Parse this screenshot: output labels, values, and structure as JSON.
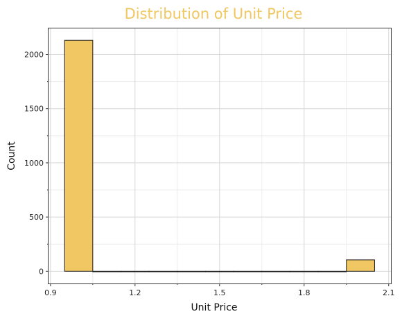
{
  "chart_data": {
    "type": "bar",
    "title": "Distribution of Unit Price",
    "xlabel": "Unit Price",
    "ylabel": "Count",
    "bins": [
      {
        "x0": 0.95,
        "x1": 1.05,
        "count": 2130
      },
      {
        "x0": 1.05,
        "x1": 1.15,
        "count": 0
      },
      {
        "x0": 1.15,
        "x1": 1.25,
        "count": 0
      },
      {
        "x0": 1.25,
        "x1": 1.35,
        "count": 0
      },
      {
        "x0": 1.35,
        "x1": 1.45,
        "count": 0
      },
      {
        "x0": 1.45,
        "x1": 1.55,
        "count": 0
      },
      {
        "x0": 1.55,
        "x1": 1.65,
        "count": 0
      },
      {
        "x0": 1.65,
        "x1": 1.75,
        "count": 0
      },
      {
        "x0": 1.75,
        "x1": 1.85,
        "count": 0
      },
      {
        "x0": 1.85,
        "x1": 1.95,
        "count": 0
      },
      {
        "x0": 1.95,
        "x1": 2.05,
        "count": 105
      }
    ],
    "xlim": [
      0.893,
      2.108
    ],
    "ylim": [
      -113,
      2240
    ],
    "xticks": [
      0.9,
      1.2,
      1.5,
      1.8,
      2.1
    ],
    "xtick_labels": [
      "0.9",
      "1.2",
      "1.5",
      "1.8",
      "2.1"
    ],
    "xminor": [
      1.05,
      1.35,
      1.65,
      1.95
    ],
    "yticks": [
      0,
      500,
      1000,
      1500,
      2000
    ],
    "ytick_labels": [
      "0",
      "500",
      "1000",
      "1500",
      "2000"
    ],
    "yminor": [
      250,
      750,
      1250,
      1750
    ],
    "grid": true,
    "colors": {
      "bar_fill": "#f0c762",
      "bar_stroke": "#1a1a1a",
      "title": "#f0c762",
      "grid_major": "#d6d6d6",
      "grid_minor": "#ececec",
      "frame": "#333333"
    }
  }
}
